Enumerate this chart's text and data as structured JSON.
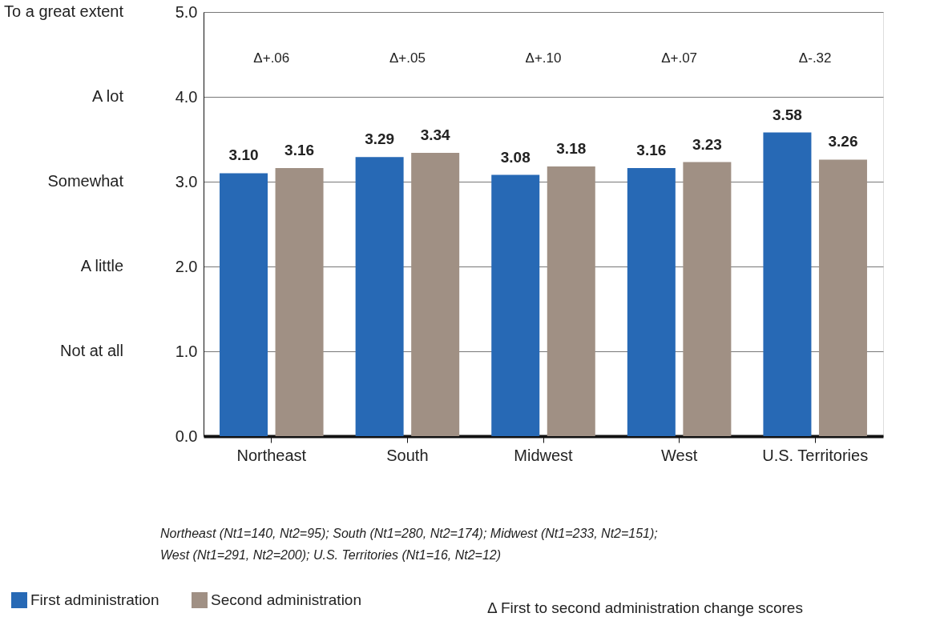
{
  "chart_data": {
    "type": "bar",
    "categories": [
      "Northeast",
      "South",
      "Midwest",
      "West",
      "U.S. Territories"
    ],
    "series": [
      {
        "name": "First administration",
        "color": "#2769b5",
        "values": [
          3.1,
          3.29,
          3.08,
          3.16,
          3.58
        ],
        "value_labels": [
          "3.10",
          "3.29",
          "3.08",
          "3.16",
          "3.58"
        ]
      },
      {
        "name": "Second administration",
        "color": "#a09084",
        "values": [
          3.16,
          3.34,
          3.18,
          3.23,
          3.26
        ],
        "value_labels": [
          "3.16",
          "3.34",
          "3.18",
          "3.23",
          "3.26"
        ]
      }
    ],
    "ylim": [
      0,
      5
    ],
    "yticks": [
      {
        "value": 0,
        "label": "0.0"
      },
      {
        "value": 1,
        "label": "1.0"
      },
      {
        "value": 2,
        "label": "2.0"
      },
      {
        "value": 3,
        "label": "3.0"
      },
      {
        "value": 4,
        "label": "4.0"
      },
      {
        "value": 5,
        "label": "5.0"
      }
    ],
    "grid": "y",
    "legend": "bottom left",
    "annotations": [
      "Δ+.06",
      "Δ+.05",
      "Δ+.10",
      "Δ+.07",
      "Δ-.32",
      "Not at all",
      "A little",
      "Somewhat",
      "A lot",
      "To a great extent",
      "Northeast (Nt1=140, Nt2=95); South (Nt1=280, Nt2=174); Midwest (Nt1=233, Nt2=151);",
      "West (Nt1=291, Nt2=200); U.S. Territories (Nt1=16, Nt2=12)",
      "Δ First to second administration change scores"
    ]
  }
}
